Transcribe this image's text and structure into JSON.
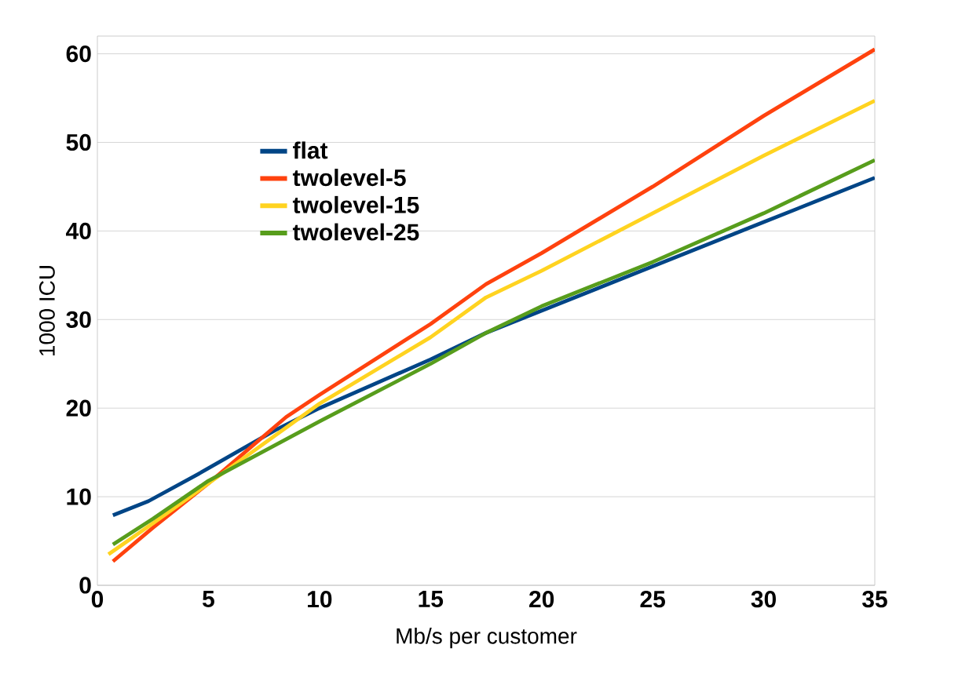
{
  "chart_data": {
    "type": "line",
    "xlabel": "Mb/s per customer",
    "ylabel": "1000 ICU",
    "xlim": [
      0,
      35
    ],
    "ylim": [
      0,
      62
    ],
    "xticks": [
      0,
      5,
      10,
      15,
      20,
      25,
      30,
      35
    ],
    "yticks": [
      0,
      10,
      20,
      30,
      40,
      50,
      60
    ],
    "grid": "y",
    "legend": "top left",
    "marker": "none",
    "line_style": "solid",
    "series": [
      {
        "name": "flat",
        "color": "#004586",
        "x": [
          0.7,
          2.3,
          4.5,
          8,
          10,
          15,
          17.5,
          20,
          25,
          30,
          35
        ],
        "values": [
          7.9,
          9.5,
          12.5,
          17.5,
          20,
          25.5,
          28.5,
          31,
          36,
          41,
          46
        ]
      },
      {
        "name": "twolevel-5",
        "color": "#ff420e",
        "x": [
          0.7,
          2.5,
          5,
          8.5,
          10,
          15,
          17.5,
          20,
          25,
          30,
          35
        ],
        "values": [
          2.7,
          6.5,
          11.5,
          19,
          21.5,
          29.5,
          34,
          37.5,
          45,
          53,
          60.5
        ]
      },
      {
        "name": "twolevel-15",
        "color": "#ffd320",
        "x": [
          0.5,
          2.5,
          5,
          10,
          15,
          17.5,
          20,
          25,
          30,
          35
        ],
        "values": [
          3.5,
          7,
          11.5,
          20.5,
          28,
          32.5,
          35.5,
          42,
          48.5,
          54.7
        ]
      },
      {
        "name": "twolevel-25",
        "color": "#579d1c",
        "x": [
          0.7,
          2.5,
          5,
          10,
          15,
          17.5,
          20,
          25,
          30,
          35
        ],
        "values": [
          4.6,
          7.5,
          11.8,
          18.5,
          25,
          28.5,
          31.5,
          36.5,
          42,
          48
        ]
      }
    ]
  }
}
